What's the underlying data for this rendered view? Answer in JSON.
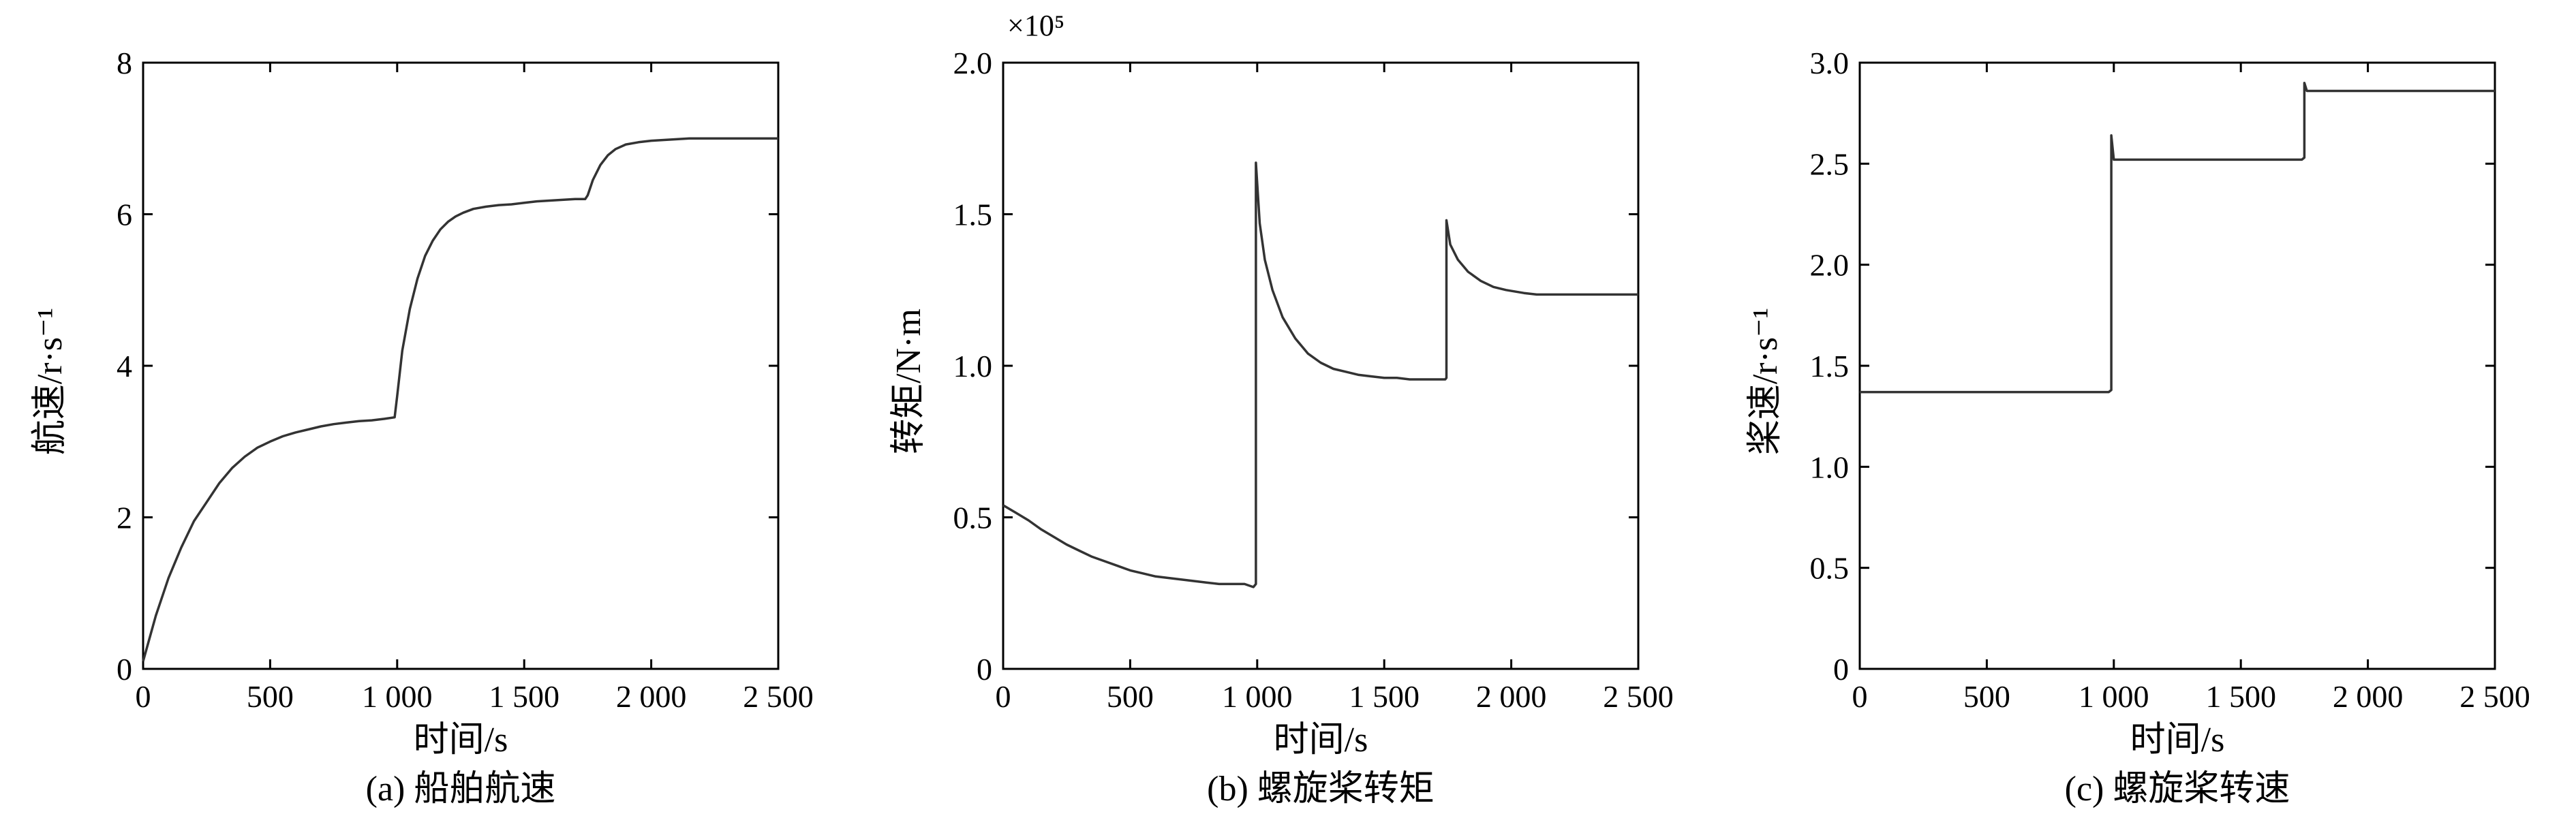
{
  "chart_data": [
    {
      "type": "line",
      "caption": "(a) 船舶航速",
      "xlabel": "时间/s",
      "ylabel": "航速/r·s⁻¹",
      "exponent_label": "",
      "xlim": [
        0,
        2500
      ],
      "ylim": [
        0,
        8
      ],
      "xticks": [
        0,
        500,
        1000,
        1500,
        2000,
        2500
      ],
      "xtick_labels": [
        "0",
        "500",
        "1 000",
        "1 500",
        "2 000",
        "2 500"
      ],
      "yticks": [
        0,
        2,
        4,
        6,
        8
      ],
      "ytick_labels": [
        "0",
        "2",
        "4",
        "6",
        "8"
      ],
      "grid": false,
      "series": [
        {
          "x": [
            0,
            25,
            50,
            100,
            150,
            200,
            250,
            300,
            350,
            400,
            450,
            500,
            550,
            600,
            650,
            700,
            750,
            800,
            850,
            900,
            950,
            990,
            1000,
            1020,
            1050,
            1080,
            1110,
            1140,
            1170,
            1200,
            1230,
            1260,
            1300,
            1350,
            1400,
            1450,
            1500,
            1550,
            1600,
            1650,
            1700,
            1740,
            1750,
            1770,
            1800,
            1830,
            1860,
            1900,
            1950,
            2000,
            2050,
            2100,
            2150,
            2200,
            2300,
            2400,
            2500
          ],
          "y": [
            0.1,
            0.4,
            0.7,
            1.2,
            1.6,
            1.95,
            2.2,
            2.45,
            2.65,
            2.8,
            2.92,
            3.0,
            3.07,
            3.12,
            3.16,
            3.2,
            3.23,
            3.25,
            3.27,
            3.28,
            3.3,
            3.32,
            3.6,
            4.2,
            4.75,
            5.15,
            5.45,
            5.65,
            5.8,
            5.9,
            5.97,
            6.02,
            6.07,
            6.1,
            6.12,
            6.13,
            6.15,
            6.17,
            6.18,
            6.19,
            6.2,
            6.2,
            6.25,
            6.45,
            6.65,
            6.78,
            6.86,
            6.92,
            6.95,
            6.97,
            6.98,
            6.99,
            7.0,
            7.0,
            7.0,
            7.0,
            7.0
          ]
        }
      ]
    },
    {
      "type": "line",
      "caption": "(b) 螺旋桨转矩",
      "xlabel": "时间/s",
      "ylabel": "转矩/N·m",
      "exponent_label": "×10⁵",
      "xlim": [
        0,
        2500
      ],
      "ylim": [
        0,
        2.0
      ],
      "xticks": [
        0,
        500,
        1000,
        1500,
        2000,
        2500
      ],
      "xtick_labels": [
        "0",
        "500",
        "1 000",
        "1 500",
        "2 000",
        "2 500"
      ],
      "yticks": [
        0,
        0.5,
        1.0,
        1.5,
        2.0
      ],
      "ytick_labels": [
        "0",
        "0.5",
        "1.0",
        "1.5",
        "2.0"
      ],
      "grid": false,
      "series": [
        {
          "x": [
            0,
            50,
            100,
            150,
            200,
            250,
            300,
            350,
            400,
            450,
            500,
            550,
            600,
            650,
            700,
            750,
            800,
            850,
            900,
            950,
            985,
            995,
            995,
            1010,
            1030,
            1060,
            1100,
            1150,
            1200,
            1250,
            1300,
            1350,
            1400,
            1450,
            1500,
            1550,
            1600,
            1650,
            1700,
            1740,
            1745,
            1745,
            1760,
            1790,
            1830,
            1880,
            1930,
            1980,
            2050,
            2100,
            2200,
            2300,
            2400,
            2500
          ],
          "y": [
            0.54,
            0.515,
            0.49,
            0.46,
            0.435,
            0.41,
            0.39,
            0.37,
            0.355,
            0.34,
            0.325,
            0.315,
            0.305,
            0.3,
            0.295,
            0.29,
            0.285,
            0.28,
            0.28,
            0.28,
            0.27,
            0.28,
            1.67,
            1.47,
            1.35,
            1.25,
            1.16,
            1.09,
            1.04,
            1.01,
            0.99,
            0.98,
            0.97,
            0.965,
            0.96,
            0.96,
            0.955,
            0.955,
            0.955,
            0.955,
            0.96,
            1.48,
            1.4,
            1.35,
            1.31,
            1.28,
            1.26,
            1.25,
            1.24,
            1.235,
            1.235,
            1.235,
            1.235,
            1.235
          ]
        }
      ]
    },
    {
      "type": "line",
      "caption": "(c) 螺旋桨转速",
      "xlabel": "时间/s",
      "ylabel": "桨速/r·s⁻¹",
      "exponent_label": "",
      "xlim": [
        0,
        2500
      ],
      "ylim": [
        0,
        3.0
      ],
      "xticks": [
        0,
        500,
        1000,
        1500,
        2000,
        2500
      ],
      "xtick_labels": [
        "0",
        "500",
        "1 000",
        "1 500",
        "2 000",
        "2 500"
      ],
      "yticks": [
        0,
        0.5,
        1.0,
        1.5,
        2.0,
        2.5,
        3.0
      ],
      "ytick_labels": [
        "0",
        "0.5",
        "1.0",
        "1.5",
        "2.0",
        "2.5",
        "3.0"
      ],
      "grid": false,
      "series": [
        {
          "x": [
            0,
            980,
            990,
            990,
            1000,
            1740,
            1750,
            1750,
            1760,
            2500
          ],
          "y": [
            1.37,
            1.37,
            1.38,
            2.64,
            2.52,
            2.52,
            2.53,
            2.9,
            2.86,
            2.86
          ]
        }
      ]
    }
  ]
}
